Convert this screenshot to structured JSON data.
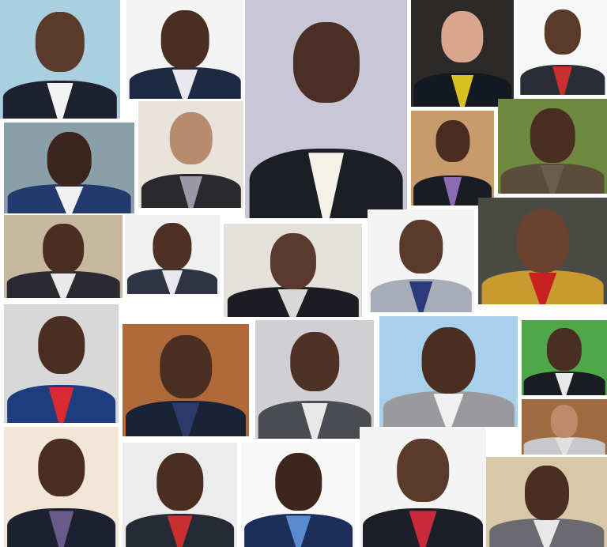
{
  "collage": {
    "tiles": [
      {
        "bg": "#a9cfe0",
        "skin": "#5a3a2a",
        "suit": "#1e2230",
        "shirt": "#f2f2f2"
      },
      {
        "bg": "#f4f4f4",
        "skin": "#4a2e22",
        "suit": "#1c2a44",
        "shirt": "#e8e8ee"
      },
      {
        "bg": "#c9c6d6",
        "skin": "#4b2f25",
        "suit": "#1c1e26",
        "shirt": "#f4f1e6"
      },
      {
        "bg": "#2c2a28",
        "skin": "#d9a58e",
        "suit": "#141820",
        "shirt": "#d8c020"
      },
      {
        "bg": "#f6f6f6",
        "skin": "#5a3a28",
        "suit": "#2a2c36",
        "shirt": "#c83030"
      },
      {
        "bg": "#8aa0a8",
        "skin": "#3a241c",
        "suit": "#223a6e",
        "shirt": "#f0f0f0"
      },
      {
        "bg": "#e8e4dc",
        "skin": "#b88a6e",
        "suit": "#2a2a2e",
        "shirt": "#9a9aa6"
      },
      {
        "bg": "#c89a6c",
        "skin": "#4a2c20",
        "suit": "#1a1c24",
        "shirt": "#8a6ab0"
      },
      {
        "bg": "#6e8a40",
        "skin": "#4a2e22",
        "suit": "#5a4e3a",
        "shirt": "#6a5e4a"
      },
      {
        "bg": "#c8b8a0",
        "skin": "#4a2e22",
        "suit": "#2a2a30",
        "shirt": "#e8e8e8"
      },
      {
        "bg": "#f0f0f0",
        "skin": "#4e3024",
        "suit": "#2e3444",
        "shirt": "#e8e8ee"
      },
      {
        "bg": "#e4e0dc",
        "skin": "#5a3a2c",
        "suit": "#1c1c22",
        "shirt": "#d8d8d8"
      },
      {
        "bg": "#f4f4f4",
        "skin": "#5a3a2a",
        "suit": "#a8acb8",
        "shirt": "#2a3a7a"
      },
      {
        "bg": "#4a4a44",
        "skin": "#6a4230",
        "suit": "#c89a30",
        "shirt": "#c82020"
      },
      {
        "bg": "#d8d8d8",
        "skin": "#4a2e22",
        "suit": "#1e3c7e",
        "shirt": "#d82a30"
      },
      {
        "bg": "#b06a3a",
        "skin": "#4a2e22",
        "suit": "#1a2238",
        "shirt": "#2a3a6a"
      },
      {
        "bg": "#d0d0d4",
        "skin": "#4e3226",
        "suit": "#4a4c52",
        "shirt": "#e8e8e8"
      },
      {
        "bg": "#a8d0ea",
        "skin": "#4a2e22",
        "suit": "#9a9a9e",
        "shirt": "#f0f0f0"
      },
      {
        "bg": "#4ea84a",
        "skin": "#4a2e22",
        "suit": "#1a1c24",
        "shirt": "#e8e8e8"
      },
      {
        "bg": "#a06a40",
        "skin": "#c08a6a",
        "suit": "#c8c8cc",
        "shirt": "#e0e0e0"
      },
      {
        "bg": "#f2e6d6",
        "skin": "#4a2e22",
        "suit": "#1c2030",
        "shirt": "#6a5a8a"
      },
      {
        "bg": "#ececec",
        "skin": "#4a2e22",
        "suit": "#262a34",
        "shirt": "#c83030"
      },
      {
        "bg": "#f8f8f8",
        "skin": "#3e261c",
        "suit": "#1c2e5a",
        "shirt": "#5a8ad0"
      },
      {
        "bg": "#f4f4f4",
        "skin": "#5a3a2a",
        "suit": "#1c1e28",
        "shirt": "#c82a3a"
      },
      {
        "bg": "#d8c8a8",
        "skin": "#4a2e22",
        "suit": "#6a6a70",
        "shirt": "#e8e8e8"
      }
    ]
  }
}
